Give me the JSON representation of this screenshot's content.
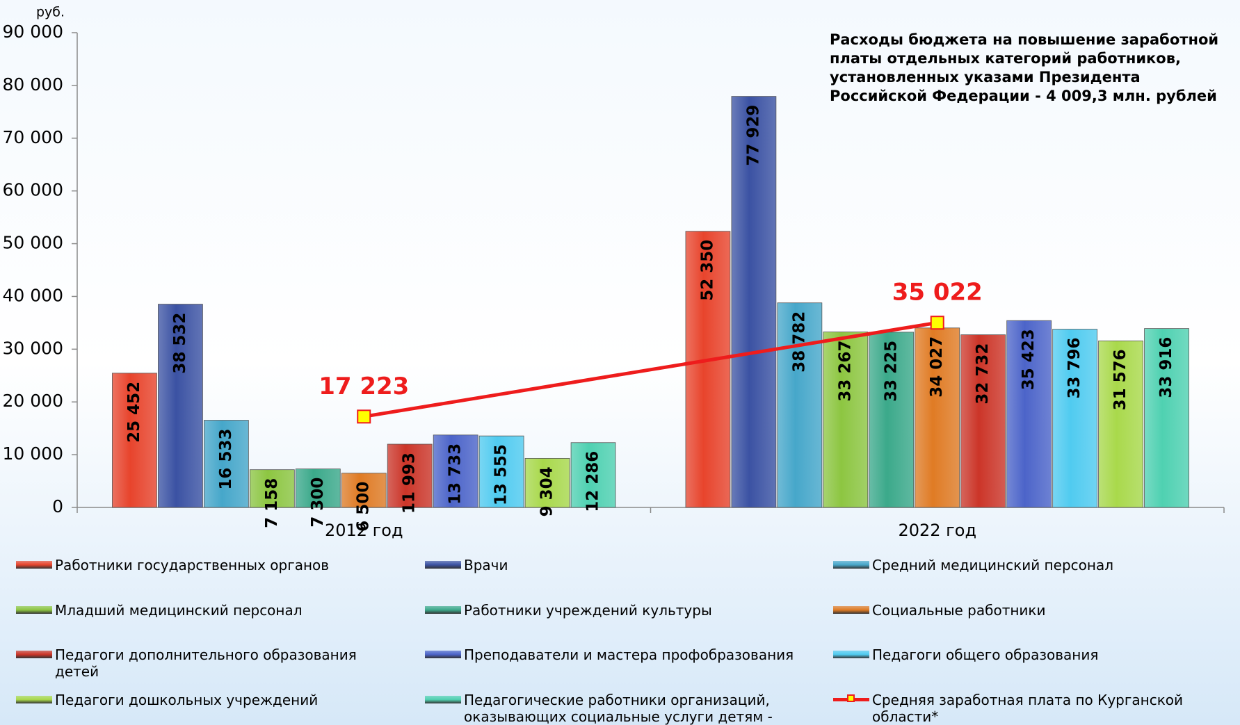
{
  "chart_data": {
    "type": "bar",
    "title": [
      "Расходы бюджета  на повышение заработной",
      "платы отдельных категорий работников,",
      "установленных указами Президента",
      "Российской Федерации - 4 009,3 млн. рублей"
    ],
    "y_label": "руб.",
    "categories": [
      "2012 год",
      "2022 год"
    ],
    "ylim": [
      0,
      90000
    ],
    "yticks": [
      0,
      {
        "value": 10000,
        "label": "10 000"
      },
      {
        "value": 20000,
        "label": "20 000"
      },
      {
        "value": 30000,
        "label": "30 000"
      },
      {
        "value": 40000,
        "label": "40 000"
      },
      {
        "value": 50000,
        "label": "50 000"
      },
      {
        "value": 60000,
        "label": "60 000"
      },
      {
        "value": 70000,
        "label": "70 000"
      },
      {
        "value": 80000,
        "label": "80 000"
      },
      {
        "value": 90000,
        "label": "90 000"
      }
    ],
    "series": [
      {
        "name": "Работники государственных органов",
        "color": "#e8442c",
        "values": [
          25452,
          52350
        ],
        "value_labels": [
          "25 452",
          "52 350"
        ]
      },
      {
        "name": "Врачи",
        "color": "#3b52a3",
        "values": [
          38532,
          77929
        ],
        "value_labels": [
          "38 532",
          "77 929"
        ]
      },
      {
        "name": "Средний медицинский персонал",
        "color": "#46a7ca",
        "values": [
          16533,
          38782
        ],
        "value_labels": [
          "16 533",
          "38 782"
        ]
      },
      {
        "name": "Младший медицинский персонал",
        "color": "#8dc641",
        "values": [
          7158,
          33267
        ],
        "value_labels": [
          "7 158",
          "33 267"
        ]
      },
      {
        "name": "Работники учреждений культуры",
        "color": "#3ba98a",
        "values": [
          7300,
          33225
        ],
        "value_labels": [
          "7 300",
          "33 225"
        ]
      },
      {
        "name": "Социальные работники",
        "color": "#e07b24",
        "values": [
          6500,
          34027
        ],
        "value_labels": [
          "6 500",
          "34 027"
        ]
      },
      {
        "name": "Педагоги  дополнительного образования детей",
        "color": "#cc3528",
        "values": [
          11993,
          32732
        ],
        "value_labels": [
          "11 993",
          "32 732"
        ]
      },
      {
        "name": "Преподаватели и мастера профобразования",
        "color": "#4c64c9",
        "values": [
          13733,
          35423
        ],
        "value_labels": [
          "13 733",
          "35 423"
        ]
      },
      {
        "name": "Педагоги общего образования",
        "color": "#50cbf0",
        "values": [
          13555,
          33796
        ],
        "value_labels": [
          "13 555",
          "33 796"
        ]
      },
      {
        "name": "Педагоги дошкольных учреждений",
        "color": "#a9d94b",
        "values": [
          9304,
          31576
        ],
        "value_labels": [
          "9 304",
          "31 576"
        ]
      },
      {
        "name": "Педагогические работники организаций, оказывающих социальные услуги детям - сиротам",
        "color": "#4fd1b1",
        "values": [
          12286,
          33916
        ],
        "value_labels": [
          "12 286",
          "33 916"
        ]
      },
      {
        "name": "Средняя заработная плата по Курганской области*",
        "type": "line",
        "color": "#ee1c1c",
        "marker_color": "#ffff00",
        "values": [
          17223,
          35022
        ],
        "value_labels": [
          "17 223",
          "35 022"
        ]
      }
    ]
  }
}
